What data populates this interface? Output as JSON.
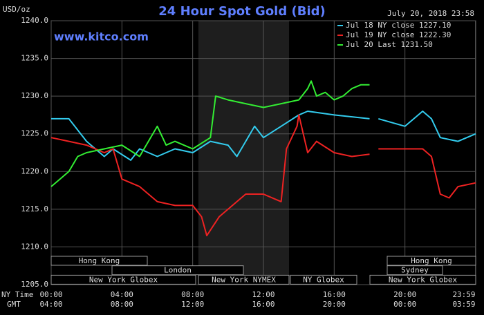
{
  "chart_data": {
    "type": "line",
    "title": "24 Hour Spot Gold (Bid)",
    "y_unit": "USD/oz",
    "timestamp": "July 20, 2018 23:58",
    "site": "www.kitco.com",
    "x_row_labels": [
      "NY Time",
      "GMT"
    ],
    "xlim": [
      0,
      24
    ],
    "xticks": [
      {
        "value": 0,
        "label": "00:00"
      },
      {
        "value": 4,
        "label": "04:00"
      },
      {
        "value": 8,
        "label": "08:00"
      },
      {
        "value": 12,
        "label": "12:00"
      },
      {
        "value": 16,
        "label": "16:00"
      },
      {
        "value": 20,
        "label": "20:00"
      },
      {
        "value": 23.983,
        "label": "23:59"
      }
    ],
    "gmt_ticks": [
      {
        "value": 0,
        "label": "04:00"
      },
      {
        "value": 4,
        "label": "08:00"
      },
      {
        "value": 8,
        "label": "12:00"
      },
      {
        "value": 12,
        "label": "16:00"
      },
      {
        "value": 16,
        "label": "20:00"
      },
      {
        "value": 20,
        "label": "00:00"
      },
      {
        "value": 23.983,
        "label": "03:59"
      }
    ],
    "ylim": [
      1205,
      1240
    ],
    "yticks": [
      {
        "value": 1205,
        "label": "1205.0"
      },
      {
        "value": 1210,
        "label": "1210.0"
      },
      {
        "value": 1215,
        "label": "1215.0"
      },
      {
        "value": 1220,
        "label": "1220.0"
      },
      {
        "value": 1225,
        "label": "1225.0"
      },
      {
        "value": 1230,
        "label": "1230.0"
      },
      {
        "value": 1235,
        "label": "1235.0"
      },
      {
        "value": 1240,
        "label": "1240.0"
      }
    ],
    "grid": true,
    "legend": "top-right",
    "series": [
      {
        "name": "Jul 18 NY close 1227.10",
        "color": "#33ccee",
        "x": [
          0,
          1,
          2,
          3,
          3.5,
          4.5,
          5,
          6,
          7,
          8,
          9,
          10,
          10.5,
          11,
          11.5,
          12,
          13,
          14,
          14.5,
          16,
          18,
          18.2,
          18.5,
          20,
          21,
          21.5,
          22,
          23,
          24
        ],
        "values": [
          1227,
          1227,
          1224,
          1222,
          1223,
          1221.5,
          1223,
          1222,
          1223,
          1222.5,
          1224,
          1223.5,
          1222,
          1224,
          1226,
          1224.5,
          1226,
          1227.5,
          1228,
          1227.5,
          1227,
          null,
          1227,
          1226,
          1228,
          1227,
          1224.5,
          1224,
          1225
        ]
      },
      {
        "name": "Jul 19 NY close 1222.30",
        "color": "#ee2222",
        "x": [
          0,
          1,
          2,
          3,
          3.5,
          4,
          5,
          6,
          7,
          8,
          8.5,
          8.8,
          9.5,
          10.5,
          11,
          12,
          13,
          13.3,
          13.9,
          14,
          14.5,
          15,
          16,
          17,
          18,
          18.2,
          18.5,
          21,
          21.5,
          22,
          22.5,
          23,
          24
        ],
        "values": [
          1224.5,
          1224,
          1223.5,
          1222.5,
          1223,
          1219,
          1218,
          1216,
          1215.5,
          1215.5,
          1214,
          1211.5,
          1214,
          1216,
          1217,
          1217,
          1216,
          1223,
          1226,
          1227.5,
          1222.5,
          1224,
          1222.5,
          1222,
          1222.3,
          null,
          1223,
          1223,
          1222,
          1217,
          1216.5,
          1218,
          1218.5
        ]
      },
      {
        "name": "Jul 20 Last 1231.50",
        "color": "#33ee33",
        "x": [
          0,
          0.5,
          1,
          1.5,
          2,
          3,
          4,
          5,
          5.5,
          6,
          6.5,
          7,
          8,
          9,
          9.3,
          10,
          11,
          12,
          13,
          14,
          14.5,
          14.7,
          15,
          15.5,
          16,
          16.5,
          17,
          17.5,
          18
        ],
        "values": [
          1218,
          1219,
          1220,
          1222,
          1222.5,
          1223,
          1223.5,
          1222,
          1224,
          1226,
          1223.5,
          1224,
          1223,
          1224.5,
          1230,
          1229.5,
          1229,
          1228.5,
          1229,
          1229.5,
          1231,
          1232,
          1230,
          1230.5,
          1229.5,
          1230,
          1231,
          1231.5,
          1231.5
        ]
      }
    ],
    "sessions": [
      {
        "label": "Hong Kong"
      },
      {
        "label": "London"
      },
      {
        "label": "New York Globex"
      },
      {
        "label": "New York NYMEX"
      },
      {
        "label": "NY Globex"
      },
      {
        "label": "Hong Kong"
      },
      {
        "label": "Sydney"
      },
      {
        "label": "New York Globex"
      }
    ]
  }
}
